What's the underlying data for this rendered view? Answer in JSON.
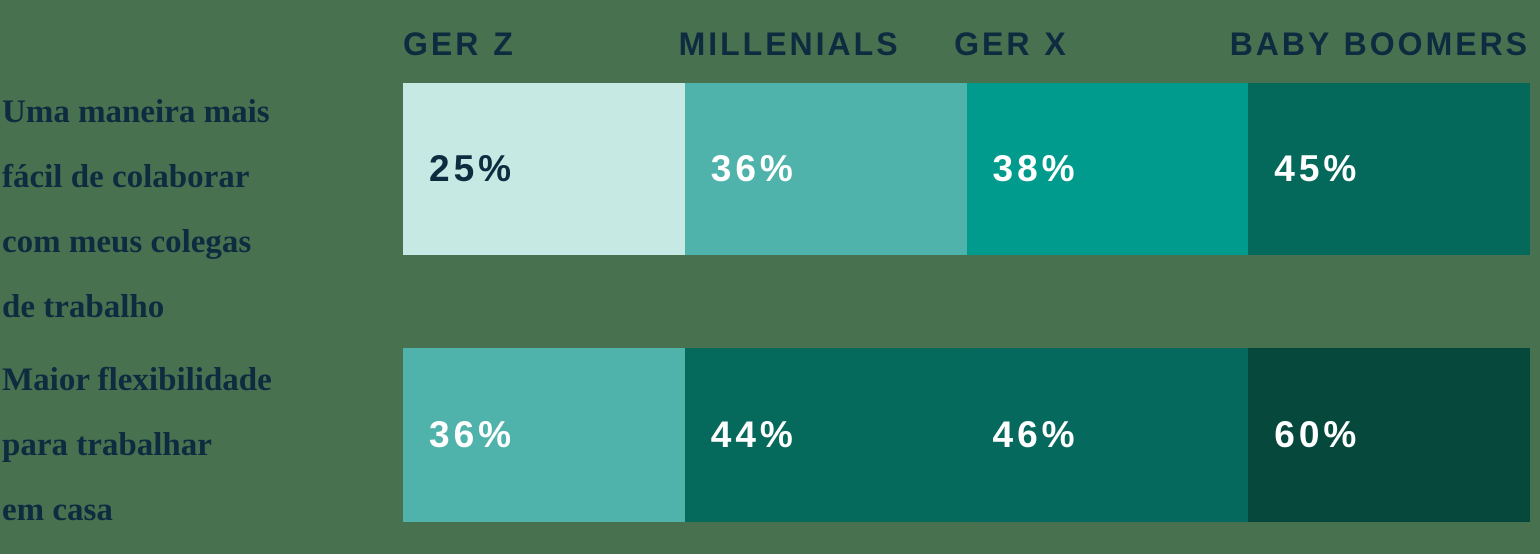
{
  "page": {
    "background_color": "#47714f",
    "heading_text_color": "#0e2b40"
  },
  "chart_data": {
    "type": "heatmap",
    "title": "",
    "xlabel": "",
    "ylabel": "",
    "legend": "none",
    "layout": "two rows of four equal-width cells, cell color darkens with value, value label inside each cell, generation headers above columns",
    "columns": [
      "GER Z",
      "MILLENIALS",
      "GER X",
      "BABY BOOMERS"
    ],
    "rows": [
      {
        "label": "Uma maneira mais\nfácil de colaborar\ncom meus colegas\nde trabalho",
        "values": [
          25,
          36,
          38,
          45
        ],
        "cells": [
          {
            "display": "25%",
            "color": "#c6e9e3",
            "text_color": "#0e2b40"
          },
          {
            "display": "36%",
            "color": "#4fb3ac",
            "text_color": "#ffffff"
          },
          {
            "display": "38%",
            "color": "#009b8c",
            "text_color": "#ffffff"
          },
          {
            "display": "45%",
            "color": "#04695a",
            "text_color": "#ffffff"
          }
        ]
      },
      {
        "label": "Maior flexibilidade\npara trabalhar\nem casa",
        "values": [
          36,
          44,
          46,
          60
        ],
        "cells": [
          {
            "display": "36%",
            "color": "#4fb3ac",
            "text_color": "#ffffff"
          },
          {
            "display": "44%",
            "color": "#056a5b",
            "text_color": "#ffffff"
          },
          {
            "display": "46%",
            "color": "#056a5d",
            "text_color": "#ffffff"
          },
          {
            "display": "60%",
            "color": "#06483c",
            "text_color": "#ffffff"
          }
        ]
      }
    ]
  }
}
